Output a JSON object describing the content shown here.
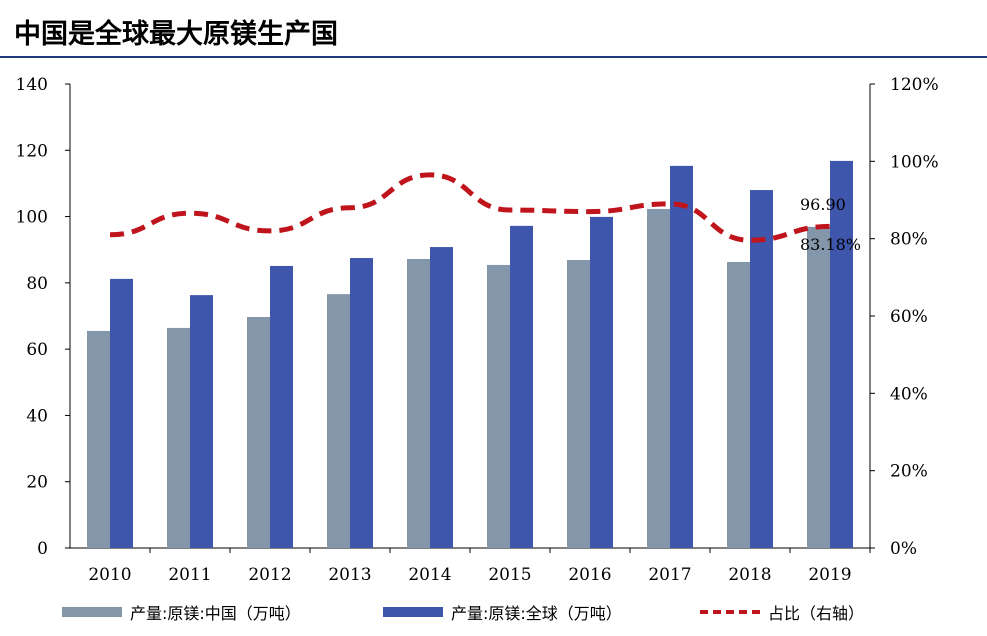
{
  "title": "中国是全球最大原镁生产国",
  "chart_data": {
    "type": "bar",
    "title": "中国是全球最大原镁生产国",
    "categories": [
      "2010",
      "2011",
      "2012",
      "2013",
      "2014",
      "2015",
      "2016",
      "2017",
      "2018",
      "2019"
    ],
    "series": [
      {
        "name": "产量:原镁:中国（万吨）",
        "type": "bar",
        "axis": "left",
        "color": "#8496a9",
        "values": [
          65.5,
          66.4,
          69.7,
          76.6,
          87.2,
          85.4,
          86.9,
          102.3,
          86.3,
          96.9
        ]
      },
      {
        "name": "产量:原镁:全球（万吨）",
        "type": "bar",
        "axis": "left",
        "color": "#3f56ad",
        "values": [
          81.2,
          76.3,
          85.1,
          87.5,
          90.8,
          97.2,
          99.9,
          115.3,
          108.0,
          116.8
        ]
      },
      {
        "name": "占比（右轴）",
        "type": "line",
        "axis": "right",
        "color": "#c0141c",
        "values": [
          81,
          86.6,
          82,
          88,
          96.5,
          87.4,
          87,
          89,
          79.6,
          83.18
        ]
      }
    ],
    "ylim": [
      0,
      140
    ],
    "yticks": [
      0,
      20,
      40,
      60,
      80,
      100,
      120,
      140
    ],
    "y2lim": [
      0,
      120
    ],
    "y2ticks": [
      "0%",
      "20%",
      "40%",
      "60%",
      "80%",
      "100%",
      "120%"
    ],
    "annotations": [
      "96.90",
      "83.18%"
    ]
  }
}
